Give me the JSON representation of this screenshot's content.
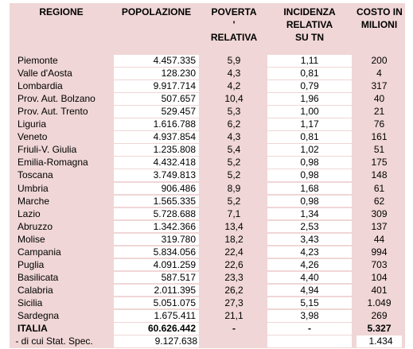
{
  "table": {
    "header": [
      [
        "REGIONE"
      ],
      [
        "POPOLAZIONE"
      ],
      [
        "POVERTA",
        "'",
        "RELATIVA"
      ],
      [
        "INCIDENZA",
        "RELATIVA",
        "SU TN"
      ],
      [
        "COSTO IN",
        "MILIONI"
      ]
    ],
    "rows": [
      [
        "Piemonte",
        "4.457.335",
        "5,9",
        "1,11",
        "200"
      ],
      [
        "Valle d'Aosta",
        "128.230",
        "4,3",
        "0,81",
        "4"
      ],
      [
        "Lombardia",
        "9.917.714",
        "4,2",
        "0,79",
        "317"
      ],
      [
        "Prov. Aut. Bolzano",
        "507.657",
        "10,4",
        "1,96",
        "40"
      ],
      [
        "Prov. Aut. Trento",
        "529.457",
        "5,3",
        "1,00",
        "21"
      ],
      [
        "Liguria",
        "1.616.788",
        "6,2",
        "1,17",
        "76"
      ],
      [
        "Veneto",
        "4.937.854",
        "4,3",
        "0,81",
        "161"
      ],
      [
        "Friuli-V. Giulia",
        "1.235.808",
        "5,4",
        "1,02",
        "51"
      ],
      [
        "Emilia-Romagna",
        "4.432.418",
        "5,2",
        "0,98",
        "175"
      ],
      [
        "Toscana",
        "3.749.813",
        "5,2",
        "0,98",
        "148"
      ],
      [
        "Umbria",
        "906.486",
        "8,9",
        "1,68",
        "61"
      ],
      [
        "Marche",
        "1.565.335",
        "5,2",
        "0,98",
        "62"
      ],
      [
        "Lazio",
        "5.728.688",
        "7,1",
        "1,34",
        "309"
      ],
      [
        "Abruzzo",
        "1.342.366",
        "13,4",
        "2,53",
        "137"
      ],
      [
        "Molise",
        "319.780",
        "18,2",
        "3,43",
        "44"
      ],
      [
        "Campania",
        "5.834.056",
        "22,4",
        "4,23",
        "994"
      ],
      [
        "Puglia",
        "4.091.259",
        "22,6",
        "4,26",
        "703"
      ],
      [
        "Basilicata",
        "587.517",
        "23,3",
        "4,40",
        "104"
      ],
      [
        "Calabria",
        "2.011.395",
        "26,2",
        "4,94",
        "401"
      ],
      [
        "Sicilia",
        "5.051.075",
        "27,3",
        "5,15",
        "1.049"
      ],
      [
        "Sardegna",
        "1.675.411",
        "21,1",
        "3,98",
        "269"
      ],
      [
        "ITALIA",
        "60.626.442",
        "-",
        "-",
        "5.327"
      ],
      [
        " - di cui Stat. Spec.",
        "9.127.638",
        null,
        null,
        "1.434"
      ]
    ]
  }
}
